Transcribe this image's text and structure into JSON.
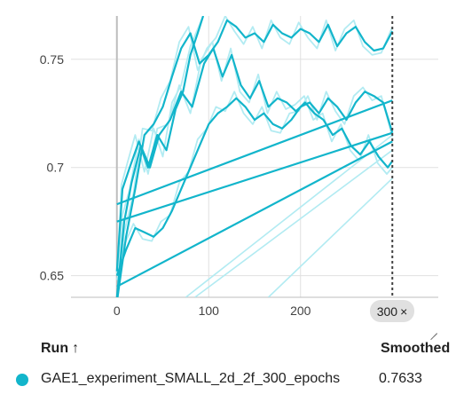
{
  "chart_data": {
    "type": "line",
    "title": "",
    "xlabel": "",
    "ylabel": "",
    "xlim": [
      -50,
      350
    ],
    "ylim": [
      0.64,
      0.77
    ],
    "x_ticks": [
      "0",
      "100",
      "200"
    ],
    "y_ticks": [
      "0.75",
      "0.7",
      "0.65"
    ],
    "grid": true,
    "cursor_x": 300,
    "color": "#12b5cb",
    "raw_color": "#b2ebf2",
    "series": [
      {
        "smoothed": [
          [
            0,
            0.683
          ],
          [
            300,
            0.731
          ]
        ],
        "raw": [
          [
            0,
            0.683
          ],
          [
            300,
            0.731
          ]
        ]
      },
      {
        "smoothed": [
          [
            0,
            0.675
          ],
          [
            300,
            0.716
          ]
        ],
        "raw": [
          [
            0,
            0.675
          ],
          [
            300,
            0.716
          ]
        ]
      },
      {
        "smoothed": [
          [
            0,
            0.645
          ],
          [
            300,
            0.712
          ]
        ],
        "raw": [
          [
            0,
            0.645
          ],
          [
            300,
            0.712
          ]
        ]
      },
      {
        "smoothed": [
          [
            0,
            0.652
          ],
          [
            6,
            0.69
          ],
          [
            14,
            0.7
          ],
          [
            24,
            0.712
          ],
          [
            34,
            0.7
          ],
          [
            44,
            0.715
          ],
          [
            54,
            0.708
          ],
          [
            64,
            0.727
          ],
          [
            72,
            0.735
          ],
          [
            80,
            0.752
          ],
          [
            88,
            0.762
          ],
          [
            94,
            0.77
          ]
        ],
        "raw": [
          [
            0,
            0.65
          ],
          [
            5,
            0.692
          ],
          [
            12,
            0.703
          ],
          [
            20,
            0.715
          ],
          [
            30,
            0.698
          ],
          [
            40,
            0.718
          ],
          [
            50,
            0.705
          ],
          [
            60,
            0.73
          ],
          [
            70,
            0.738
          ],
          [
            80,
            0.756
          ],
          [
            90,
            0.766
          ],
          [
            96,
            0.772
          ]
        ]
      },
      {
        "smoothed": [
          [
            0,
            0.64
          ],
          [
            8,
            0.675
          ],
          [
            16,
            0.693
          ],
          [
            26,
            0.71
          ],
          [
            36,
            0.7
          ],
          [
            46,
            0.715
          ],
          [
            58,
            0.722
          ],
          [
            70,
            0.735
          ],
          [
            82,
            0.728
          ],
          [
            95,
            0.748
          ],
          [
            105,
            0.755
          ],
          [
            115,
            0.742
          ],
          [
            125,
            0.752
          ],
          [
            135,
            0.738
          ],
          [
            145,
            0.732
          ],
          [
            155,
            0.74
          ],
          [
            165,
            0.728
          ],
          [
            175,
            0.732
          ],
          [
            185,
            0.73
          ],
          [
            195,
            0.726
          ],
          [
            205,
            0.73
          ],
          [
            215,
            0.725
          ],
          [
            225,
            0.722
          ],
          [
            235,
            0.715
          ],
          [
            245,
            0.718
          ],
          [
            255,
            0.71
          ],
          [
            265,
            0.706
          ],
          [
            275,
            0.712
          ],
          [
            285,
            0.705
          ],
          [
            295,
            0.7
          ],
          [
            300,
            0.703
          ]
        ],
        "raw": [
          [
            0,
            0.638
          ],
          [
            6,
            0.678
          ],
          [
            14,
            0.69
          ],
          [
            24,
            0.713
          ],
          [
            34,
            0.697
          ],
          [
            44,
            0.718
          ],
          [
            56,
            0.72
          ],
          [
            68,
            0.738
          ],
          [
            80,
            0.725
          ],
          [
            92,
            0.75
          ],
          [
            104,
            0.758
          ],
          [
            114,
            0.74
          ],
          [
            124,
            0.755
          ],
          [
            134,
            0.735
          ],
          [
            144,
            0.73
          ],
          [
            154,
            0.743
          ],
          [
            164,
            0.725
          ],
          [
            174,
            0.735
          ],
          [
            184,
            0.727
          ],
          [
            194,
            0.729
          ],
          [
            204,
            0.733
          ],
          [
            214,
            0.722
          ],
          [
            224,
            0.725
          ],
          [
            234,
            0.712
          ],
          [
            244,
            0.72
          ],
          [
            254,
            0.708
          ],
          [
            264,
            0.703
          ],
          [
            274,
            0.715
          ],
          [
            284,
            0.702
          ],
          [
            294,
            0.697
          ],
          [
            300,
            0.7
          ]
        ]
      },
      {
        "smoothed": [
          [
            0,
            0.638
          ],
          [
            10,
            0.668
          ],
          [
            20,
            0.69
          ],
          [
            30,
            0.715
          ],
          [
            40,
            0.72
          ],
          [
            50,
            0.728
          ],
          [
            60,
            0.742
          ],
          [
            70,
            0.755
          ],
          [
            80,
            0.762
          ],
          [
            90,
            0.748
          ],
          [
            100,
            0.752
          ],
          [
            110,
            0.758
          ],
          [
            120,
            0.768
          ],
          [
            130,
            0.765
          ],
          [
            140,
            0.76
          ],
          [
            150,
            0.762
          ],
          [
            160,
            0.758
          ],
          [
            170,
            0.766
          ],
          [
            180,
            0.762
          ],
          [
            190,
            0.76
          ],
          [
            200,
            0.764
          ],
          [
            210,
            0.762
          ],
          [
            220,
            0.758
          ],
          [
            230,
            0.766
          ],
          [
            240,
            0.756
          ],
          [
            250,
            0.762
          ],
          [
            260,
            0.765
          ],
          [
            270,
            0.758
          ],
          [
            280,
            0.754
          ],
          [
            290,
            0.755
          ],
          [
            300,
            0.763
          ]
        ],
        "raw": [
          [
            0,
            0.636
          ],
          [
            8,
            0.67
          ],
          [
            18,
            0.688
          ],
          [
            28,
            0.718
          ],
          [
            38,
            0.717
          ],
          [
            48,
            0.732
          ],
          [
            58,
            0.74
          ],
          [
            68,
            0.758
          ],
          [
            78,
            0.765
          ],
          [
            88,
            0.745
          ],
          [
            98,
            0.755
          ],
          [
            108,
            0.76
          ],
          [
            118,
            0.77
          ],
          [
            128,
            0.763
          ],
          [
            138,
            0.757
          ],
          [
            148,
            0.765
          ],
          [
            158,
            0.755
          ],
          [
            168,
            0.768
          ],
          [
            178,
            0.76
          ],
          [
            188,
            0.757
          ],
          [
            198,
            0.767
          ],
          [
            208,
            0.76
          ],
          [
            218,
            0.755
          ],
          [
            228,
            0.768
          ],
          [
            238,
            0.754
          ],
          [
            248,
            0.764
          ],
          [
            258,
            0.768
          ],
          [
            268,
            0.756
          ],
          [
            278,
            0.752
          ],
          [
            288,
            0.753
          ],
          [
            300,
            0.765
          ]
        ]
      },
      {
        "smoothed": [
          [
            0,
            0.65
          ],
          [
            10,
            0.662
          ],
          [
            20,
            0.672
          ],
          [
            30,
            0.67
          ],
          [
            40,
            0.668
          ],
          [
            50,
            0.672
          ],
          [
            60,
            0.68
          ],
          [
            70,
            0.69
          ],
          [
            80,
            0.7
          ],
          [
            90,
            0.71
          ],
          [
            100,
            0.72
          ],
          [
            110,
            0.725
          ],
          [
            120,
            0.728
          ],
          [
            130,
            0.732
          ],
          [
            140,
            0.728
          ],
          [
            150,
            0.722
          ],
          [
            160,
            0.725
          ],
          [
            170,
            0.72
          ],
          [
            180,
            0.718
          ],
          [
            190,
            0.722
          ],
          [
            200,
            0.728
          ],
          [
            210,
            0.73
          ],
          [
            220,
            0.725
          ],
          [
            230,
            0.732
          ],
          [
            240,
            0.728
          ],
          [
            250,
            0.722
          ],
          [
            260,
            0.73
          ],
          [
            270,
            0.735
          ],
          [
            280,
            0.733
          ],
          [
            290,
            0.73
          ],
          [
            300,
            0.716
          ]
        ],
        "raw": [
          [
            0,
            0.648
          ],
          [
            8,
            0.664
          ],
          [
            18,
            0.674
          ],
          [
            28,
            0.667
          ],
          [
            38,
            0.666
          ],
          [
            48,
            0.675
          ],
          [
            58,
            0.678
          ],
          [
            68,
            0.693
          ],
          [
            78,
            0.698
          ],
          [
            88,
            0.713
          ],
          [
            98,
            0.718
          ],
          [
            108,
            0.728
          ],
          [
            118,
            0.726
          ],
          [
            128,
            0.735
          ],
          [
            138,
            0.725
          ],
          [
            148,
            0.72
          ],
          [
            158,
            0.728
          ],
          [
            168,
            0.717
          ],
          [
            178,
            0.716
          ],
          [
            188,
            0.725
          ],
          [
            198,
            0.726
          ],
          [
            208,
            0.733
          ],
          [
            218,
            0.722
          ],
          [
            228,
            0.735
          ],
          [
            238,
            0.726
          ],
          [
            248,
            0.72
          ],
          [
            258,
            0.733
          ],
          [
            268,
            0.737
          ],
          [
            278,
            0.731
          ],
          [
            288,
            0.733
          ],
          [
            300,
            0.714
          ]
        ]
      }
    ],
    "raw_only": [
      [
        [
          75,
          0.64
        ],
        [
          300,
          0.715
        ]
      ],
      [
        [
          85,
          0.64
        ],
        [
          300,
          0.708
        ]
      ],
      [
        [
          165,
          0.64
        ],
        [
          300,
          0.695
        ]
      ]
    ]
  },
  "cursor_label": "300",
  "cursor_close": "×",
  "table": {
    "run_header": "Run",
    "sort_arrow": "↑",
    "smoothed_header": "Smoothed",
    "rows": [
      {
        "name": "GAE1_experiment_SMALL_2d_2f_300_epochs",
        "value": "0.7633",
        "color": "#12b5cb"
      }
    ]
  }
}
